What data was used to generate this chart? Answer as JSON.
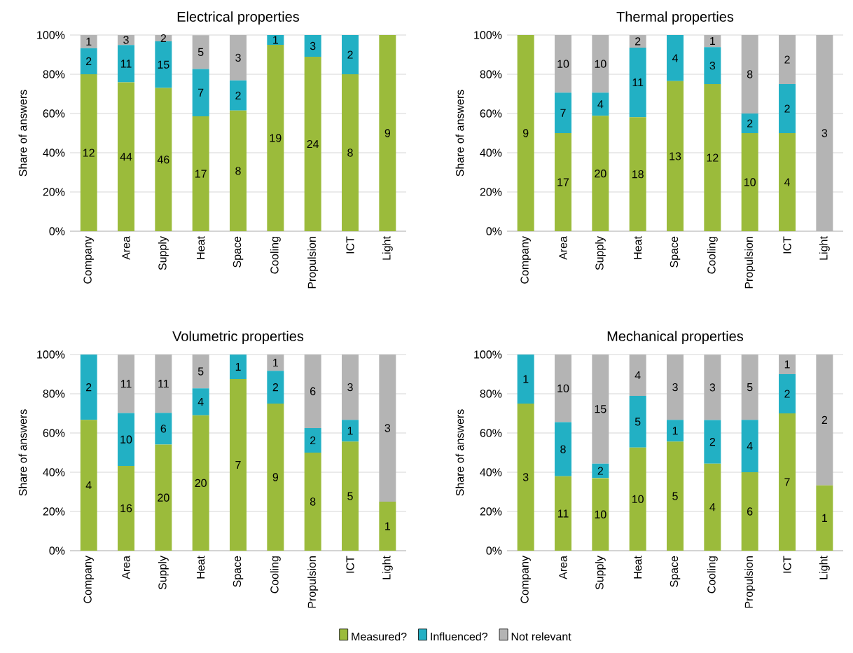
{
  "chart_data": [
    {
      "type": "bar",
      "stacked": true,
      "title": "Electrical properties",
      "ylabel": "Share of answers",
      "categories": [
        "Company",
        "Area",
        "Supply",
        "Heat",
        "Space",
        "Cooling",
        "Propulsion",
        "ICT",
        "Light"
      ],
      "ylim": [
        0,
        100
      ],
      "yticks": [
        {
          "value": 0,
          "label": "0%"
        },
        {
          "value": 20,
          "label": "20%"
        },
        {
          "value": 40,
          "label": "40%"
        },
        {
          "value": 60,
          "label": "60%"
        },
        {
          "value": 80,
          "label": "80%"
        },
        {
          "value": 100,
          "label": "100%"
        }
      ],
      "grid": "y",
      "series": [
        {
          "color": "#9bbb3b",
          "values": [
            80.0,
            75.9,
            73.0,
            58.6,
            61.5,
            95.0,
            88.9,
            80.0,
            100.0
          ]
        },
        {
          "color": "#22b0c4",
          "values": [
            13.3,
            19.0,
            23.8,
            24.1,
            15.4,
            5.0,
            11.1,
            20.0,
            0
          ]
        },
        {
          "color": "#b4b4b4",
          "values": [
            6.7,
            5.2,
            3.2,
            17.2,
            23.1,
            0,
            0,
            0,
            0
          ]
        }
      ],
      "annotations": [
        "12",
        "2",
        "1",
        "44",
        "11",
        "3",
        "46",
        "15",
        "2",
        "17",
        "7",
        "5",
        "8",
        "2",
        "3",
        "19",
        "1",
        "24",
        "3",
        "8",
        "2",
        "9"
      ]
    },
    {
      "type": "bar",
      "stacked": true,
      "title": "Thermal properties",
      "ylabel": "Share of answers",
      "categories": [
        "Company",
        "Area",
        "Supply",
        "Heat",
        "Space",
        "Cooling",
        "Propulsion",
        "ICT",
        "Light"
      ],
      "ylim": [
        0,
        100
      ],
      "yticks": [
        {
          "value": 0,
          "label": "0%"
        },
        {
          "value": 20,
          "label": "20%"
        },
        {
          "value": 40,
          "label": "40%"
        },
        {
          "value": 60,
          "label": "60%"
        },
        {
          "value": 80,
          "label": "80%"
        },
        {
          "value": 100,
          "label": "100%"
        }
      ],
      "grid": "y",
      "series": [
        {
          "color": "#9bbb3b",
          "values": [
            100.0,
            50.0,
            58.8,
            58.1,
            76.5,
            75.0,
            50.0,
            50.0,
            0
          ]
        },
        {
          "color": "#22b0c4",
          "values": [
            0,
            20.6,
            11.8,
            35.5,
            23.5,
            18.8,
            10.0,
            25.0,
            0
          ]
        },
        {
          "color": "#b4b4b4",
          "values": [
            0,
            29.4,
            29.4,
            6.5,
            0,
            6.3,
            40.0,
            25.0,
            100.0
          ]
        }
      ],
      "annotations": [
        "9",
        "17",
        "7",
        "10",
        "20",
        "4",
        "10",
        "18",
        "11",
        "2",
        "13",
        "4",
        "12",
        "3",
        "1",
        "10",
        "2",
        "8",
        "4",
        "2",
        "2",
        "3"
      ]
    },
    {
      "type": "bar",
      "stacked": true,
      "title": "Volumetric properties",
      "ylabel": "Share of answers",
      "categories": [
        "Company",
        "Area",
        "Supply",
        "Heat",
        "Space",
        "Cooling",
        "Propulsion",
        "ICT",
        "Light"
      ],
      "ylim": [
        0,
        100
      ],
      "yticks": [
        {
          "value": 0,
          "label": "0%"
        },
        {
          "value": 20,
          "label": "20%"
        },
        {
          "value": 40,
          "label": "40%"
        },
        {
          "value": 60,
          "label": "60%"
        },
        {
          "value": 80,
          "label": "80%"
        },
        {
          "value": 100,
          "label": "100%"
        }
      ],
      "grid": "y",
      "legend": "bottom",
      "series": [
        {
          "name": "Measured?",
          "color": "#9bbb3b",
          "values": [
            66.7,
            43.2,
            54.1,
            69.0,
            87.5,
            75.0,
            50.0,
            55.6,
            25.0
          ]
        },
        {
          "name": "Influenced?",
          "color": "#22b0c4",
          "values": [
            33.3,
            27.0,
            16.2,
            13.8,
            12.5,
            16.7,
            12.5,
            11.1,
            0
          ]
        },
        {
          "name": "Not relevant",
          "color": "#b4b4b4",
          "values": [
            0,
            29.7,
            29.7,
            17.2,
            0,
            8.3,
            37.5,
            33.3,
            75.0
          ]
        }
      ],
      "annotations": [
        "4",
        "2",
        "16",
        "10",
        "11",
        "20",
        "6",
        "11",
        "20",
        "4",
        "5",
        "7",
        "1",
        "9",
        "2",
        "1",
        "8",
        "2",
        "6",
        "5",
        "1",
        "3",
        "1",
        "3"
      ]
    },
    {
      "type": "bar",
      "stacked": true,
      "title": "Mechanical properties",
      "ylabel": "Share of answers",
      "categories": [
        "Company",
        "Area",
        "Supply",
        "Heat",
        "Space",
        "Cooling",
        "Propulsion",
        "ICT",
        "Light"
      ],
      "ylim": [
        0,
        100
      ],
      "yticks": [
        {
          "value": 0,
          "label": "0%"
        },
        {
          "value": 20,
          "label": "20%"
        },
        {
          "value": 40,
          "label": "40%"
        },
        {
          "value": 60,
          "label": "60%"
        },
        {
          "value": 80,
          "label": "80%"
        },
        {
          "value": 100,
          "label": "100%"
        }
      ],
      "grid": "y",
      "series": [
        {
          "color": "#9bbb3b",
          "values": [
            75.0,
            37.9,
            37.0,
            52.6,
            55.6,
            44.4,
            40.0,
            70.0,
            33.3
          ]
        },
        {
          "color": "#22b0c4",
          "values": [
            25.0,
            27.6,
            7.4,
            26.3,
            11.1,
            22.2,
            26.7,
            20.0,
            0
          ]
        },
        {
          "color": "#b4b4b4",
          "values": [
            0,
            34.5,
            55.6,
            21.1,
            33.3,
            33.3,
            33.3,
            10.0,
            66.7
          ]
        }
      ],
      "annotations": [
        "3",
        "1",
        "11",
        "8",
        "10",
        "10",
        "2",
        "15",
        "10",
        "5",
        "4",
        "5",
        "1",
        "3",
        "4",
        "2",
        "3",
        "6",
        "4",
        "5",
        "7",
        "2",
        "1",
        "1",
        "2"
      ]
    }
  ]
}
